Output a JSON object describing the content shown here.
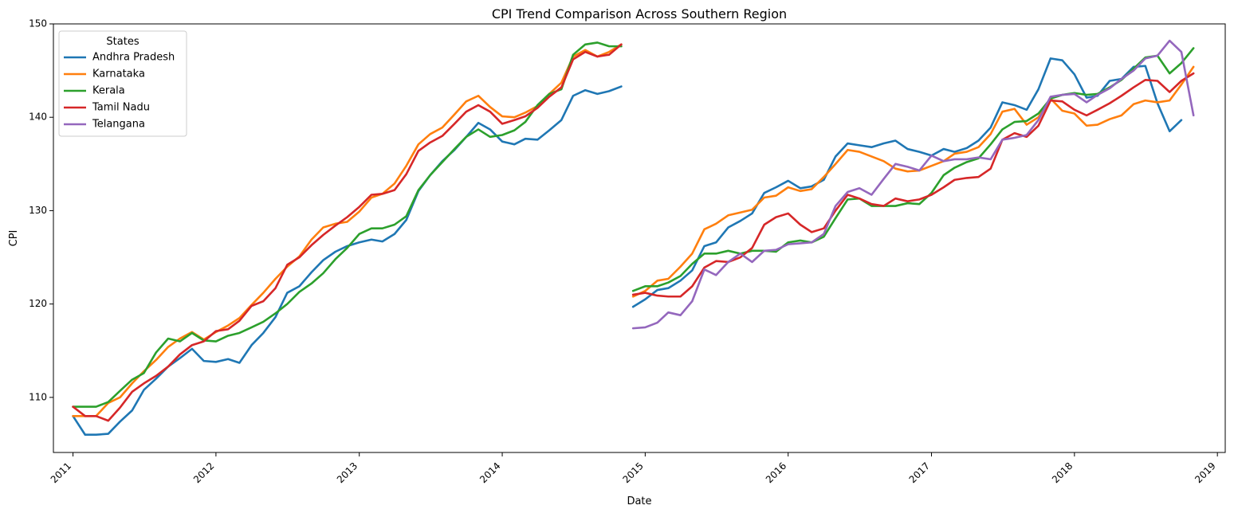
{
  "chart_data": {
    "type": "line",
    "title": "CPI Trend Comparison Across Southern Region",
    "xlabel": "Date",
    "ylabel": "CPI",
    "xlim": [
      "2010-11-12",
      "2019-01-21"
    ],
    "ylim": [
      104.1,
      150.0
    ],
    "x_ticks": [
      "2011-01-01",
      "2012-01-01",
      "2013-01-01",
      "2014-01-01",
      "2015-01-01",
      "2016-01-01",
      "2017-01-01",
      "2018-01-01",
      "2019-01-01"
    ],
    "x_tick_labels": [
      "2011",
      "2012",
      "2013",
      "2014",
      "2015",
      "2016",
      "2017",
      "2018",
      "2019"
    ],
    "y_ticks": [
      110,
      120,
      130,
      140,
      150
    ],
    "y_tick_labels": [
      "110",
      "120",
      "130",
      "140",
      "150"
    ],
    "grid": false,
    "legend": {
      "title": "States",
      "position": "top-left"
    },
    "x_start": "2011-01",
    "x_end": "2018-11",
    "series": [
      {
        "name": "Andhra Pradesh",
        "color": "#1f77b4",
        "segments": [
          {
            "start": "2011-01",
            "values": [
              108.0,
              106.0,
              106.0,
              106.1,
              107.4,
              108.6,
              110.8,
              112.0,
              113.3,
              114.2,
              115.2,
              113.9,
              113.8,
              114.1,
              113.7,
              115.6,
              116.9,
              118.6,
              121.2,
              121.9,
              123.4,
              124.7,
              125.6,
              126.2,
              126.6,
              126.9,
              126.7,
              127.5,
              129.0,
              132.1,
              133.8,
              135.3,
              136.5,
              137.9,
              139.4,
              138.7,
              137.4,
              137.1,
              137.7,
              137.6,
              138.6,
              139.7,
              142.3,
              142.9,
              142.5,
              142.8,
              143.3
            ]
          },
          {
            "start": "2014-12",
            "values": [
              119.7,
              120.5,
              121.5,
              121.7,
              122.5,
              123.6,
              126.2,
              126.6,
              128.2,
              128.9,
              129.7,
              131.9,
              132.5,
              133.2,
              132.4,
              132.6,
              133.3,
              135.8,
              137.2,
              137.0,
              136.8,
              137.2,
              137.5,
              136.6,
              136.3,
              135.9,
              136.6,
              136.3,
              136.7,
              137.5,
              138.9,
              141.6,
              141.3,
              140.8,
              143.0,
              146.3,
              146.1,
              144.6,
              142.1,
              142.3,
              143.9,
              144.1,
              145.4,
              145.5,
              141.5,
              138.5,
              139.7
            ]
          }
        ]
      },
      {
        "name": "Karnataka",
        "color": "#ff7f0e",
        "segments": [
          {
            "start": "2011-01",
            "values": [
              108.0,
              108.0,
              108.0,
              109.4,
              110.0,
              111.5,
              112.8,
              114.0,
              115.4,
              116.3,
              117.0,
              116.2,
              117.0,
              117.7,
              118.5,
              119.9,
              121.2,
              122.7,
              124.0,
              125.1,
              126.9,
              128.2,
              128.6,
              128.8,
              129.9,
              131.4,
              131.8,
              132.9,
              134.8,
              137.1,
              138.2,
              138.9,
              140.3,
              141.7,
              142.3,
              141.1,
              140.1,
              140.0,
              140.5,
              141.2,
              142.5,
              143.7,
              146.5,
              147.2,
              146.5,
              147.0,
              147.8
            ]
          },
          {
            "start": "2014-12",
            "values": [
              120.8,
              121.4,
              122.5,
              122.7,
              124.0,
              125.4,
              128.0,
              128.6,
              129.5,
              129.8,
              130.1,
              131.4,
              131.6,
              132.5,
              132.1,
              132.3,
              133.6,
              135.0,
              136.5,
              136.3,
              135.8,
              135.3,
              134.5,
              134.2,
              134.3,
              134.8,
              135.3,
              136.1,
              136.3,
              136.8,
              138.2,
              140.6,
              140.9,
              139.2,
              140.0,
              142.0,
              140.7,
              140.4,
              139.1,
              139.2,
              139.8,
              140.2,
              141.4,
              141.8,
              141.6,
              141.8,
              143.5,
              145.4
            ]
          }
        ]
      },
      {
        "name": "Kerala",
        "color": "#2ca02c",
        "segments": [
          {
            "start": "2011-01",
            "values": [
              109.0,
              109.0,
              109.0,
              109.5,
              110.7,
              111.9,
              112.6,
              114.8,
              116.3,
              116.0,
              116.9,
              116.1,
              116.0,
              116.6,
              116.9,
              117.5,
              118.1,
              119.0,
              120.0,
              121.3,
              122.2,
              123.3,
              124.8,
              126.0,
              127.5,
              128.1,
              128.1,
              128.5,
              129.4,
              132.2,
              133.8,
              135.2,
              136.6,
              137.9,
              138.7,
              137.9,
              138.1,
              138.6,
              139.5,
              141.3,
              142.5,
              143.0,
              146.7,
              147.8,
              148.0,
              147.6,
              147.6
            ]
          },
          {
            "start": "2014-12",
            "values": [
              121.4,
              121.9,
              121.9,
              122.3,
              123.0,
              124.3,
              125.4,
              125.4,
              125.7,
              125.4,
              125.7,
              125.7,
              125.6,
              126.6,
              126.8,
              126.6,
              127.2,
              129.2,
              131.2,
              131.3,
              130.5,
              130.5,
              130.5,
              130.8,
              130.7,
              131.9,
              133.8,
              134.6,
              135.2,
              135.6,
              137.1,
              138.7,
              139.5,
              139.6,
              140.4,
              142.0,
              142.4,
              142.6,
              142.4,
              142.5,
              143.2,
              144.0,
              145.2,
              146.4,
              146.6,
              144.7,
              145.8,
              147.4
            ]
          }
        ]
      },
      {
        "name": "Tamil Nadu",
        "color": "#d62728",
        "segments": [
          {
            "start": "2011-01",
            "values": [
              109.0,
              108.0,
              108.0,
              107.5,
              108.9,
              110.6,
              111.5,
              112.3,
              113.3,
              114.6,
              115.6,
              116.0,
              117.1,
              117.3,
              118.2,
              119.8,
              120.3,
              121.7,
              124.2,
              125.0,
              126.3,
              127.4,
              128.4,
              129.3,
              130.4,
              131.7,
              131.8,
              132.2,
              133.9,
              136.4,
              137.3,
              138.0,
              139.3,
              140.6,
              141.3,
              140.6,
              139.3,
              139.7,
              140.1,
              141.0,
              142.2,
              143.2,
              146.2,
              147.0,
              146.5,
              146.7,
              147.8
            ]
          },
          {
            "start": "2014-12",
            "values": [
              121.0,
              121.2,
              120.9,
              120.8,
              120.8,
              121.9,
              123.9,
              124.6,
              124.5,
              125.0,
              126.0,
              128.5,
              129.3,
              129.7,
              128.5,
              127.7,
              128.1,
              130.0,
              131.7,
              131.3,
              130.7,
              130.5,
              131.3,
              131.0,
              131.2,
              131.7,
              132.5,
              133.3,
              133.5,
              133.6,
              134.5,
              137.6,
              138.3,
              137.9,
              139.1,
              141.8,
              141.7,
              140.8,
              140.2,
              140.8,
              141.5,
              142.3,
              143.2,
              144.0,
              143.9,
              142.7,
              143.9,
              144.7
            ]
          }
        ]
      },
      {
        "name": "Telangana",
        "color": "#9467bd",
        "segments": [
          {
            "start": "2014-12",
            "values": [
              117.4,
              117.5,
              118.0,
              119.1,
              118.8,
              120.3,
              123.7,
              123.1,
              124.5,
              125.4,
              124.5,
              125.7,
              125.8,
              126.4,
              126.5,
              126.6,
              127.5,
              130.5,
              132.0,
              132.4,
              131.7,
              133.4,
              135.0,
              134.7,
              134.3,
              135.9,
              135.3,
              135.5,
              135.5,
              135.7,
              135.5,
              137.6,
              137.8,
              138.1,
              139.7,
              142.2,
              142.4,
              142.5,
              141.6,
              142.4,
              143.1,
              144.1,
              145.0,
              146.3,
              146.6,
              148.2,
              147.0,
              140.2
            ]
          }
        ]
      }
    ]
  }
}
